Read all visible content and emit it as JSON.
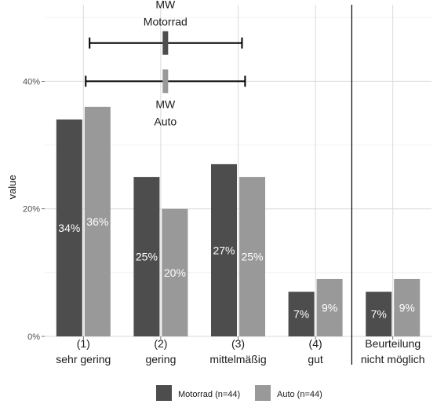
{
  "chart_data": {
    "type": "bar",
    "categories": [
      [
        "(1)",
        "sehr gering"
      ],
      [
        "(2)",
        "gering"
      ],
      [
        "(3)",
        "mittelmäßig"
      ],
      [
        "(4)",
        "gut"
      ],
      [
        "Beurteilung",
        "nicht möglich"
      ]
    ],
    "series": [
      {
        "name": "Motorrad (n=44)",
        "values": [
          34,
          25,
          27,
          7,
          7
        ],
        "labels": [
          "34%",
          "25%",
          "27%",
          "7%",
          "7%"
        ],
        "color": "#4d4d4d"
      },
      {
        "name": "Auto (n=44)",
        "values": [
          36,
          20,
          25,
          9,
          9
        ],
        "labels": [
          "36%",
          "20%",
          "25%",
          "9%",
          "9%"
        ],
        "color": "#999999"
      }
    ],
    "ylabel": "value",
    "xlabel": "",
    "ylim": [
      0,
      52
    ],
    "yticks": [
      0,
      20,
      40
    ],
    "ytick_labels": [
      "0%",
      "20%",
      "40%"
    ],
    "grid": true,
    "legend": {
      "position": "bottom",
      "entries": [
        "Motorrad (n=44)",
        "Auto (n=44)"
      ]
    },
    "means": [
      {
        "label_lines": [
          "MW",
          "Motorrad"
        ],
        "mean": 2.06,
        "ci": [
          1.08,
          3.05
        ],
        "y": 46,
        "color": "#4d4d4d",
        "label_position": "above"
      },
      {
        "label_lines": [
          "MW",
          "Auto"
        ],
        "mean": 2.06,
        "ci": [
          1.03,
          3.09
        ],
        "y": 40,
        "color": "#999999",
        "label_position": "below"
      }
    ],
    "separator_after_category": 4
  }
}
